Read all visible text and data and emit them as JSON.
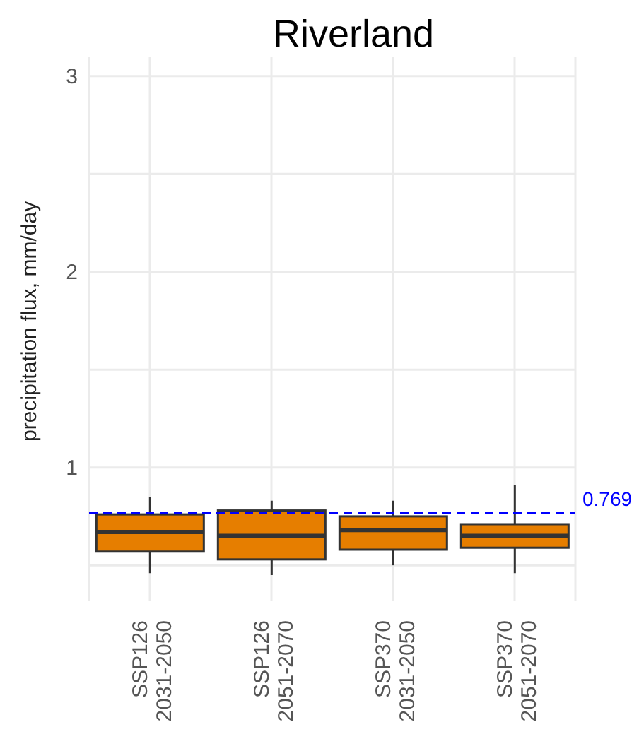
{
  "chart_data": {
    "type": "box",
    "title": "Riverland",
    "ylabel": "precipitation flux, mm/day",
    "categories": [
      "SSP126 2031-2050",
      "SSP126 2051-2070",
      "SSP370 2031-2050",
      "SSP370 2051-2070"
    ],
    "color": "#e67e00",
    "boxes": [
      {
        "low": 0.46,
        "q1": 0.57,
        "median": 0.67,
        "q3": 0.76,
        "high": 0.85
      },
      {
        "low": 0.45,
        "q1": 0.53,
        "median": 0.65,
        "q3": 0.78,
        "high": 0.83
      },
      {
        "low": 0.5,
        "q1": 0.58,
        "median": 0.68,
        "q3": 0.75,
        "high": 0.83
      },
      {
        "low": 0.46,
        "q1": 0.59,
        "median": 0.65,
        "q3": 0.71,
        "high": 0.91
      }
    ],
    "ylim": [
      0.32,
      3.1
    ],
    "yticks": [
      {
        "value": 0.5,
        "label": null
      },
      1,
      {
        "value": 1.5,
        "label": null
      },
      2,
      {
        "value": 2.5,
        "label": null
      },
      3
    ],
    "ref_lines": [
      {
        "axis": "y",
        "value": 0.769,
        "label": "0.769",
        "color": "#0000ff",
        "line_style": "dashed"
      }
    ],
    "grid": true
  }
}
